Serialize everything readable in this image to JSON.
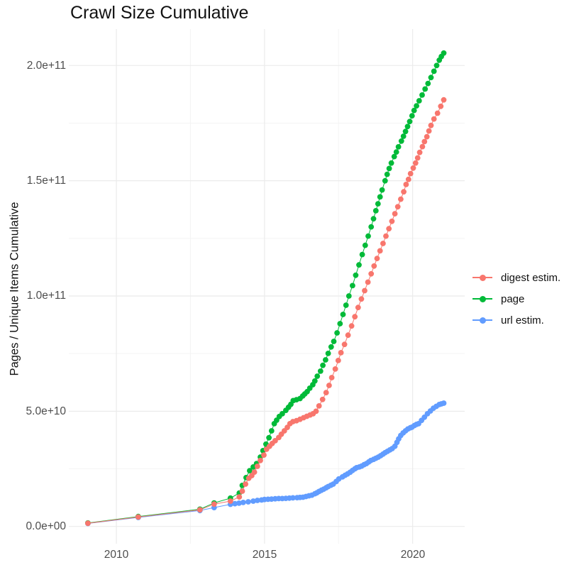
{
  "page_title": "Crawl Size Cumulative",
  "axis": {
    "y_title": "Pages / Unique Items Cumulative",
    "y_ticks": [
      "0.0e+00",
      "5.0e+10",
      "1.0e+11",
      "1.5e+11",
      "2.0e+11"
    ],
    "x_ticks": [
      "2010",
      "2015",
      "2020"
    ]
  },
  "legend": {
    "items": [
      {
        "label": "digest estim.",
        "color": "#F8766D"
      },
      {
        "label": "page",
        "color": "#00BA38"
      },
      {
        "label": "url estim.",
        "color": "#619CFF"
      }
    ]
  },
  "chart_data": {
    "type": "scatter",
    "title": "Crawl Size Cumulative",
    "xlabel": "",
    "ylabel": "Pages / Unique Items Cumulative",
    "xlim": [
      2008.395,
      2021.757
    ],
    "ylim": [
      -7480000000.0,
      215800000000.0
    ],
    "x_tick_values": [
      2010,
      2015,
      2020
    ],
    "x_minor_values": [
      2012.5,
      2017.5
    ],
    "y_tick_values": [
      0,
      50000000000.0,
      100000000000.0,
      150000000000.0,
      200000000000.0
    ],
    "y_minor_values": [
      25000000000.0,
      75000000000.0,
      125000000000.0,
      175000000000.0
    ],
    "grid": true,
    "legend_position": "right",
    "marker_radius": 3.9,
    "colors": {
      "major_grid": "#EBEBEB",
      "minor_grid": "#F4F4F4"
    },
    "series": [
      {
        "name": "digest estim.",
        "color": "#F8766D",
        "points": [
          [
            2009.04,
            1400000000.0
          ],
          [
            2010.74,
            4100000000.0
          ],
          [
            2012.82,
            7200000000.0
          ],
          [
            2013.3,
            9700000000.0
          ],
          [
            2013.85,
            11000000000.0
          ],
          [
            2014.15,
            12800000000.0
          ],
          [
            2014.25,
            15300000000.0
          ],
          [
            2014.36,
            18400000000.0
          ],
          [
            2014.47,
            20900000000.0
          ],
          [
            2014.57,
            22100000000.0
          ],
          [
            2014.66,
            23600000000.0
          ],
          [
            2014.76,
            26100000000.0
          ],
          [
            2014.86,
            28600000000.0
          ],
          [
            2014.98,
            31000000000.0
          ],
          [
            2015.07,
            33500000000.0
          ],
          [
            2015.17,
            34800000000.0
          ],
          [
            2015.26,
            36000000000.0
          ],
          [
            2015.36,
            37200000000.0
          ],
          [
            2015.48,
            38600000000.0
          ],
          [
            2015.57,
            40000000000.0
          ],
          [
            2015.67,
            41500000000.0
          ],
          [
            2015.77,
            43000000000.0
          ],
          [
            2015.86,
            44600000000.0
          ],
          [
            2015.96,
            45500000000.0
          ],
          [
            2016.08,
            45900000000.0
          ],
          [
            2016.2,
            46500000000.0
          ],
          [
            2016.32,
            47200000000.0
          ],
          [
            2016.43,
            47800000000.0
          ],
          [
            2016.54,
            48400000000.0
          ],
          [
            2016.64,
            48900000000.0
          ],
          [
            2016.74,
            50000000000.0
          ],
          [
            2016.84,
            52300000000.0
          ],
          [
            2016.96,
            55100000000.0
          ],
          [
            2017.08,
            58100000000.0
          ],
          [
            2017.18,
            61200000000.0
          ],
          [
            2017.27,
            64600000000.0
          ],
          [
            2017.39,
            68300000000.0
          ],
          [
            2017.49,
            72000000000.0
          ],
          [
            2017.58,
            75400000000.0
          ],
          [
            2017.7,
            79000000000.0
          ],
          [
            2017.82,
            83000000000.0
          ],
          [
            2017.94,
            87000000000.0
          ],
          [
            2018.05,
            91000000000.0
          ],
          [
            2018.16,
            95000000000.0
          ],
          [
            2018.27,
            98700000000.0
          ],
          [
            2018.38,
            102300000000.0
          ],
          [
            2018.49,
            106000000000.0
          ],
          [
            2018.6,
            109600000000.0
          ],
          [
            2018.7,
            113000000000.0
          ],
          [
            2018.8,
            116300000000.0
          ],
          [
            2018.9,
            119600000000.0
          ],
          [
            2019.0,
            122800000000.0
          ],
          [
            2019.1,
            126000000000.0
          ],
          [
            2019.2,
            129200000000.0
          ],
          [
            2019.3,
            132400000000.0
          ],
          [
            2019.4,
            135700000000.0
          ],
          [
            2019.5,
            138700000000.0
          ],
          [
            2019.6,
            142000000000.0
          ],
          [
            2019.7,
            145200000000.0
          ],
          [
            2019.78,
            148400000000.0
          ],
          [
            2019.86,
            150600000000.0
          ],
          [
            2019.93,
            153100000000.0
          ],
          [
            2020.02,
            155500000000.0
          ],
          [
            2020.1,
            157700000000.0
          ],
          [
            2020.17,
            159900000000.0
          ],
          [
            2020.24,
            162300000000.0
          ],
          [
            2020.33,
            164800000000.0
          ],
          [
            2020.4,
            167000000000.0
          ],
          [
            2020.48,
            169100000000.0
          ],
          [
            2020.55,
            171600000000.0
          ],
          [
            2020.62,
            174000000000.0
          ],
          [
            2020.72,
            176800000000.0
          ],
          [
            2020.84,
            179300000000.0
          ],
          [
            2020.95,
            182300000000.0
          ],
          [
            2021.05,
            185100000000.0
          ]
        ]
      },
      {
        "name": "page",
        "color": "#00BA38",
        "points": [
          [
            2009.04,
            1500000000.0
          ],
          [
            2010.74,
            4300000000.0
          ],
          [
            2012.82,
            7500000000.0
          ],
          [
            2013.3,
            10200000000.0
          ],
          [
            2013.85,
            12300000000.0
          ],
          [
            2014.15,
            14500000000.0
          ],
          [
            2014.25,
            17800000000.0
          ],
          [
            2014.38,
            21200000000.0
          ],
          [
            2014.5,
            24200000000.0
          ],
          [
            2014.62,
            25800000000.0
          ],
          [
            2014.73,
            27300000000.0
          ],
          [
            2014.86,
            30100000000.0
          ],
          [
            2014.95,
            32900000000.0
          ],
          [
            2015.05,
            35700000000.0
          ],
          [
            2015.15,
            38500000000.0
          ],
          [
            2015.24,
            41500000000.0
          ],
          [
            2015.33,
            44600000000.0
          ],
          [
            2015.41,
            46100000000.0
          ],
          [
            2015.5,
            47700000000.0
          ],
          [
            2015.6,
            48900000000.0
          ],
          [
            2015.72,
            50400000000.0
          ],
          [
            2015.81,
            51700000000.0
          ],
          [
            2015.89,
            53000000000.0
          ],
          [
            2015.97,
            54600000000.0
          ],
          [
            2016.08,
            55000000000.0
          ],
          [
            2016.2,
            55500000000.0
          ],
          [
            2016.29,
            56600000000.0
          ],
          [
            2016.36,
            57500000000.0
          ],
          [
            2016.44,
            58500000000.0
          ],
          [
            2016.53,
            60000000000.0
          ],
          [
            2016.63,
            61500000000.0
          ],
          [
            2016.7,
            63100000000.0
          ],
          [
            2016.78,
            65200000000.0
          ],
          [
            2016.89,
            67400000000.0
          ],
          [
            2016.97,
            69900000000.0
          ],
          [
            2017.06,
            72300000000.0
          ],
          [
            2017.15,
            75100000000.0
          ],
          [
            2017.25,
            77900000000.0
          ],
          [
            2017.34,
            80300000000.0
          ],
          [
            2017.45,
            84000000000.0
          ],
          [
            2017.55,
            88000000000.0
          ],
          [
            2017.65,
            92000000000.0
          ],
          [
            2017.75,
            96000000000.0
          ],
          [
            2017.85,
            100000000000.0
          ],
          [
            2017.97,
            104500000000.0
          ],
          [
            2018.08,
            109000000000.0
          ],
          [
            2018.19,
            113500000000.0
          ],
          [
            2018.3,
            118000000000.0
          ],
          [
            2018.4,
            122000000000.0
          ],
          [
            2018.5,
            126000000000.0
          ],
          [
            2018.6,
            130000000000.0
          ],
          [
            2018.68,
            133500000000.0
          ],
          [
            2018.76,
            137000000000.0
          ],
          [
            2018.83,
            140000000000.0
          ],
          [
            2018.9,
            143000000000.0
          ],
          [
            2018.97,
            146000000000.0
          ],
          [
            2019.07,
            150000000000.0
          ],
          [
            2019.14,
            152800000000.0
          ],
          [
            2019.21,
            155300000000.0
          ],
          [
            2019.28,
            157700000000.0
          ],
          [
            2019.38,
            160500000000.0
          ],
          [
            2019.45,
            162500000000.0
          ],
          [
            2019.52,
            164700000000.0
          ],
          [
            2019.62,
            167200000000.0
          ],
          [
            2019.69,
            169300000000.0
          ],
          [
            2019.76,
            171400000000.0
          ],
          [
            2019.83,
            173500000000.0
          ],
          [
            2019.9,
            175700000000.0
          ],
          [
            2019.98,
            178200000000.0
          ],
          [
            2020.05,
            180500000000.0
          ],
          [
            2020.13,
            182500000000.0
          ],
          [
            2020.22,
            184700000000.0
          ],
          [
            2020.32,
            187200000000.0
          ],
          [
            2020.42,
            189800000000.0
          ],
          [
            2020.52,
            192200000000.0
          ],
          [
            2020.62,
            194800000000.0
          ],
          [
            2020.72,
            197500000000.0
          ],
          [
            2020.81,
            200000000000.0
          ],
          [
            2020.9,
            202300000000.0
          ],
          [
            2020.97,
            203900000000.0
          ],
          [
            2021.05,
            205400000000.0
          ]
        ]
      },
      {
        "name": "url estim.",
        "color": "#619CFF",
        "points": [
          [
            2009.04,
            1300000000.0
          ],
          [
            2010.74,
            3900000000.0
          ],
          [
            2012.82,
            6900000000.0
          ],
          [
            2013.3,
            8200000000.0
          ],
          [
            2013.85,
            9600000000.0
          ],
          [
            2014.0,
            9900000000.0
          ],
          [
            2014.14,
            10100000000.0
          ],
          [
            2014.28,
            10400000000.0
          ],
          [
            2014.45,
            10700000000.0
          ],
          [
            2014.62,
            11000000000.0
          ],
          [
            2014.76,
            11300000000.0
          ],
          [
            2014.9,
            11500000000.0
          ],
          [
            2015.0,
            11700000000.0
          ],
          [
            2015.12,
            11800000000.0
          ],
          [
            2015.24,
            11900000000.0
          ],
          [
            2015.36,
            12000000000.0
          ],
          [
            2015.48,
            12100000000.0
          ],
          [
            2015.6,
            12100000000.0
          ],
          [
            2015.72,
            12200000000.0
          ],
          [
            2015.84,
            12300000000.0
          ],
          [
            2015.96,
            12400000000.0
          ],
          [
            2016.1,
            12500000000.0
          ],
          [
            2016.2,
            12600000000.0
          ],
          [
            2016.3,
            12700000000.0
          ],
          [
            2016.4,
            13000000000.0
          ],
          [
            2016.5,
            13300000000.0
          ],
          [
            2016.6,
            13600000000.0
          ],
          [
            2016.7,
            14200000000.0
          ],
          [
            2016.77,
            14600000000.0
          ],
          [
            2016.84,
            15200000000.0
          ],
          [
            2016.92,
            15700000000.0
          ],
          [
            2017.0,
            16200000000.0
          ],
          [
            2017.08,
            16800000000.0
          ],
          [
            2017.15,
            17300000000.0
          ],
          [
            2017.24,
            17900000000.0
          ],
          [
            2017.32,
            18400000000.0
          ],
          [
            2017.42,
            19500000000.0
          ],
          [
            2017.51,
            20600000000.0
          ],
          [
            2017.63,
            21500000000.0
          ],
          [
            2017.72,
            22200000000.0
          ],
          [
            2017.8,
            22800000000.0
          ],
          [
            2017.89,
            23500000000.0
          ],
          [
            2017.97,
            24300000000.0
          ],
          [
            2018.05,
            25000000000.0
          ],
          [
            2018.11,
            25500000000.0
          ],
          [
            2018.2,
            25800000000.0
          ],
          [
            2018.28,
            26200000000.0
          ],
          [
            2018.36,
            26800000000.0
          ],
          [
            2018.44,
            27300000000.0
          ],
          [
            2018.52,
            28000000000.0
          ],
          [
            2018.59,
            28600000000.0
          ],
          [
            2018.68,
            29100000000.0
          ],
          [
            2018.76,
            29600000000.0
          ],
          [
            2018.84,
            30100000000.0
          ],
          [
            2018.92,
            30700000000.0
          ],
          [
            2019.0,
            31400000000.0
          ],
          [
            2019.07,
            32000000000.0
          ],
          [
            2019.15,
            32600000000.0
          ],
          [
            2019.23,
            33200000000.0
          ],
          [
            2019.31,
            33800000000.0
          ],
          [
            2019.4,
            34800000000.0
          ],
          [
            2019.47,
            36500000000.0
          ],
          [
            2019.53,
            38000000000.0
          ],
          [
            2019.6,
            39500000000.0
          ],
          [
            2019.68,
            40600000000.0
          ],
          [
            2019.76,
            41500000000.0
          ],
          [
            2019.84,
            42300000000.0
          ],
          [
            2019.92,
            42800000000.0
          ],
          [
            2019.98,
            43100000000.0
          ],
          [
            2020.06,
            43800000000.0
          ],
          [
            2020.13,
            44300000000.0
          ],
          [
            2020.2,
            44600000000.0
          ],
          [
            2020.3,
            46000000000.0
          ],
          [
            2020.4,
            47400000000.0
          ],
          [
            2020.5,
            48900000000.0
          ],
          [
            2020.6,
            50100000000.0
          ],
          [
            2020.7,
            51300000000.0
          ],
          [
            2020.8,
            52100000000.0
          ],
          [
            2020.9,
            52900000000.0
          ],
          [
            2020.97,
            53200000000.0
          ],
          [
            2021.05,
            53500000000.0
          ]
        ]
      }
    ]
  }
}
